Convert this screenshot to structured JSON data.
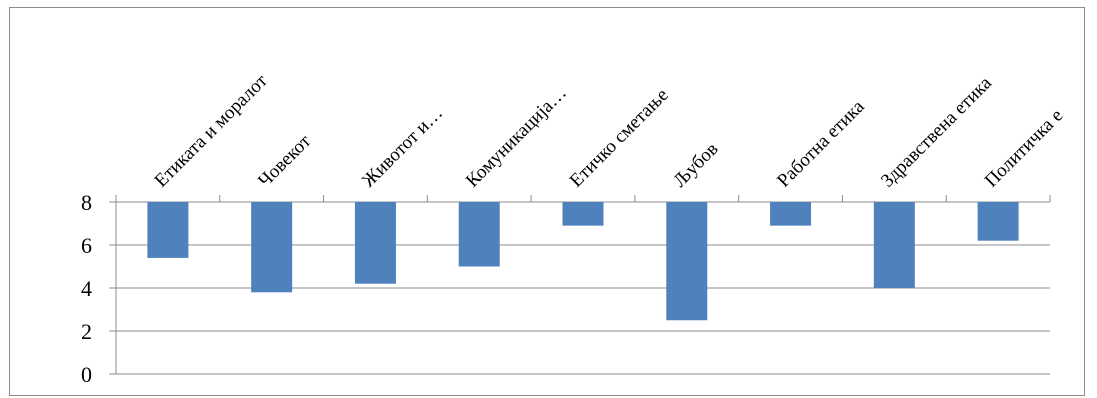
{
  "chart_data": {
    "type": "bar",
    "title": "",
    "xlabel": "",
    "ylabel": "",
    "categories": [
      "Етиката и моралот",
      "Човекот",
      "Животот и…",
      "Комуникација…",
      "Етичко сметање",
      "Љубов",
      "Работна етика",
      "Здравствена етика",
      "Политичка е"
    ],
    "values": [
      5.4,
      3.8,
      4.2,
      5.0,
      6.9,
      2.5,
      6.9,
      4.0,
      6.2
    ],
    "yticks": [
      "0",
      "2",
      "4",
      "6",
      "8"
    ],
    "ylim": [
      0,
      8
    ],
    "bars_hang_from_top": true,
    "grid": true,
    "legend": "none",
    "colors": {
      "bar": "#4f81bd",
      "grid": "#8c8c8c",
      "axis": "#8c8c8c"
    }
  }
}
